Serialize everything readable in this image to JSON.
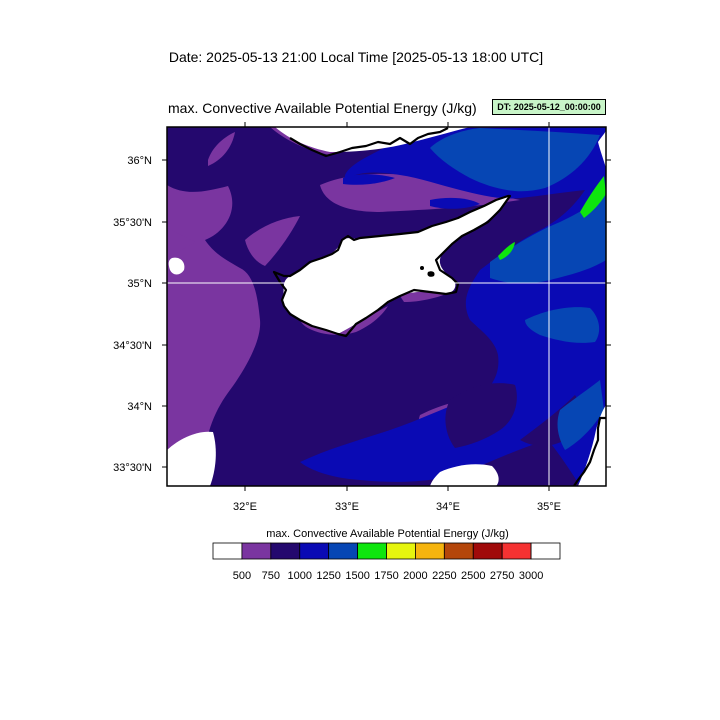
{
  "header": {
    "date_line": "Date: 2025-05-13  21:00 Local Time [2025-05-13  18:00 UTC]",
    "plot_title": "max. Convective Available Potential Energy    (J/kg)",
    "dt_badge": "DT: 2025-05-12_00:00:00"
  },
  "map": {
    "region": "Cyprus and Eastern Mediterranean",
    "lon_range": [
      31.25,
      35.55
    ],
    "lat_range": [
      33.37,
      36.3
    ],
    "lon_ticks": [
      {
        "value": 32,
        "label": "32°E"
      },
      {
        "value": 33,
        "label": "33°E"
      },
      {
        "value": 34,
        "label": "34°E"
      },
      {
        "value": 35,
        "label": "35°E"
      }
    ],
    "lat_ticks": [
      {
        "value": 36,
        "label": "36°N"
      },
      {
        "value": 35.5,
        "label": "35°30'N"
      },
      {
        "value": 35,
        "label": "35°N"
      },
      {
        "value": 34.5,
        "label": "34°30'N"
      },
      {
        "value": 34,
        "label": "34°N"
      },
      {
        "value": 33.5,
        "label": "33°30'N"
      }
    ],
    "gridlines": [
      {
        "lon": 35
      },
      {
        "lat": 35
      }
    ]
  },
  "legend": {
    "title": "max. Convective Available Potential Energy  (J/kg)",
    "colors": [
      "#ffffff",
      "#7a35a0",
      "#24086e",
      "#0a0ab4",
      "#0646b4",
      "#0ee60e",
      "#e6f50e",
      "#f5b40e",
      "#b4460a",
      "#a00a0a",
      "#f53232",
      "#ffffff"
    ],
    "labels": [
      "500",
      "750",
      "1000",
      "1250",
      "1500",
      "1750",
      "2000",
      "2250",
      "2500",
      "2750",
      "3000"
    ]
  }
}
